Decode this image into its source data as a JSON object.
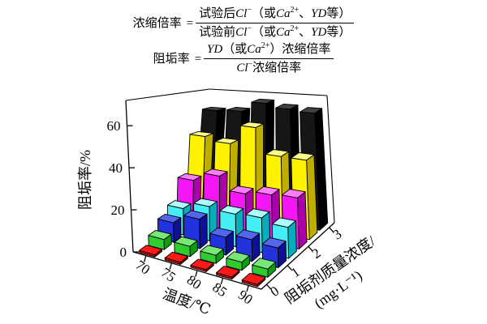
{
  "formulas": {
    "line1": {
      "lhs": "浓缩倍率",
      "eq": "=",
      "numerator": [
        {
          "t": "试验后"
        },
        {
          "t": "Cl",
          "it": true
        },
        {
          "t": "−",
          "sup": true
        },
        {
          "t": "（或"
        },
        {
          "t": "Ca",
          "it": true
        },
        {
          "t": "2+",
          "sup": true
        },
        {
          "t": "、"
        },
        {
          "t": "YD",
          "it": true
        },
        {
          "t": "等）"
        }
      ],
      "denominator": [
        {
          "t": "试验前"
        },
        {
          "t": "Cl",
          "it": true
        },
        {
          "t": "−",
          "sup": true
        },
        {
          "t": "（或"
        },
        {
          "t": "Ca",
          "it": true
        },
        {
          "t": "2+",
          "sup": true
        },
        {
          "t": "、"
        },
        {
          "t": "YD",
          "it": true
        },
        {
          "t": "等）"
        }
      ]
    },
    "line2": {
      "lhs": "阻垢率",
      "eq": "=",
      "numerator": [
        {
          "t": "YD",
          "it": true
        },
        {
          "t": "（或"
        },
        {
          "t": "Ca",
          "it": true
        },
        {
          "t": "2+",
          "sup": true
        },
        {
          "t": "）浓缩倍率"
        }
      ],
      "denominator": [
        {
          "t": "Cl",
          "it": true
        },
        {
          "t": "−",
          "sup": true
        },
        {
          "t": "浓缩倍率"
        }
      ]
    }
  },
  "chart_data": {
    "type": "bar",
    "projection": "3d-perspective",
    "title": "",
    "xlabel": "温度/℃",
    "ylabel": "阻垢率/%",
    "zlabel_line1": "阻垢剂质量浓度/",
    "zlabel_line2": "(mg·L⁻¹)",
    "x_categories": [
      70,
      75,
      80,
      85,
      90
    ],
    "x_tick_labels": [
      "70",
      "75",
      "80",
      "85",
      "90"
    ],
    "y_ticks": [
      0,
      20,
      40,
      60
    ],
    "y_tick_labels": [
      "0",
      "20",
      "40",
      "60"
    ],
    "ylim": [
      0,
      72
    ],
    "z_categories": [
      0,
      0.5,
      1,
      1.5,
      2,
      2.5,
      3
    ],
    "z_tick_values": [
      0,
      1,
      2,
      3
    ],
    "z_tick_labels": [
      "0",
      "1",
      "2",
      "3"
    ],
    "grid": false,
    "legend": "none",
    "series": [
      {
        "name": "0 mg·L⁻¹",
        "color_key": "red",
        "values": [
          1,
          1,
          1,
          1,
          1
        ]
      },
      {
        "name": "0.5 mg·L⁻¹",
        "color_key": "green",
        "values": [
          5,
          5,
          4,
          4,
          4
        ]
      },
      {
        "name": "1 mg·L⁻¹",
        "color_key": "blue",
        "values": [
          10,
          15,
          9,
          11,
          10
        ]
      },
      {
        "name": "1.5 mg·L⁻¹",
        "color_key": "cyan",
        "values": [
          14,
          18,
          17,
          18,
          16
        ]
      },
      {
        "name": "2 mg·L⁻¹",
        "color_key": "magenta",
        "values": [
          26,
          31,
          24,
          26,
          27
        ]
      },
      {
        "name": "2.5 mg·L⁻¹",
        "color_key": "yellow",
        "values": [
          48,
          46,
          57,
          43,
          43
        ]
      },
      {
        "name": "3 mg·L⁻¹",
        "color_key": "black",
        "values": [
          61,
          62,
          68,
          66,
          65
        ]
      }
    ],
    "palette": {
      "red": {
        "front": "#d40000",
        "top": "#ff1a1a",
        "side": "#8c0000"
      },
      "green": {
        "front": "#2ecc2e",
        "top": "#77e877",
        "side": "#0f9c0f"
      },
      "blue": {
        "front": "#2233dd",
        "top": "#5566ee",
        "side": "#101095"
      },
      "cyan": {
        "front": "#45eef5",
        "top": "#aeffff",
        "side": "#00aebc"
      },
      "magenta": {
        "front": "#f516f5",
        "top": "#ff7dff",
        "side": "#ad00ad"
      },
      "yellow": {
        "front": "#fef200",
        "top": "#ffff8c",
        "side": "#bfae00"
      },
      "black": {
        "front": "#161616",
        "top": "#404040",
        "side": "#000000"
      }
    },
    "axis_color": "#000000"
  }
}
